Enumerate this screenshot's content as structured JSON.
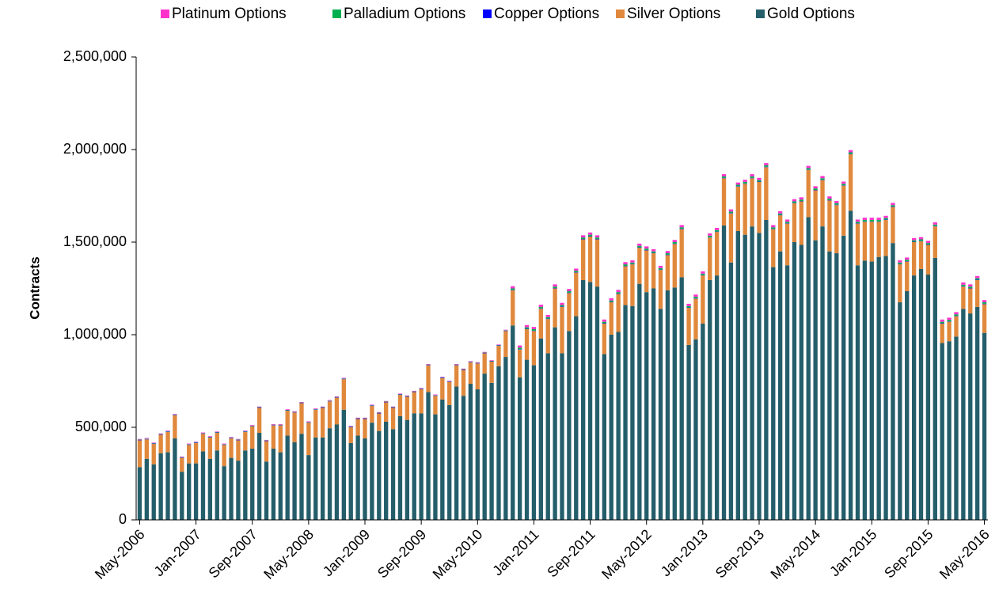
{
  "chart_data": {
    "type": "stacked-bar",
    "y_label": "Contracts",
    "categories": [
      "May-2006",
      null,
      null,
      null,
      null,
      null,
      null,
      null,
      "Jan-2007",
      null,
      null,
      null,
      null,
      null,
      null,
      null,
      "Sep-2007",
      null,
      null,
      null,
      null,
      null,
      null,
      null,
      "May-2008",
      null,
      null,
      null,
      null,
      null,
      null,
      null,
      "Jan-2009",
      null,
      null,
      null,
      null,
      null,
      null,
      null,
      "Sep-2009",
      null,
      null,
      null,
      null,
      null,
      null,
      null,
      "May-2010",
      null,
      null,
      null,
      null,
      null,
      null,
      null,
      "Jan-2011",
      null,
      null,
      null,
      null,
      null,
      null,
      null,
      "Sep-2011",
      null,
      null,
      null,
      null,
      null,
      null,
      null,
      "May-2012",
      null,
      null,
      null,
      null,
      null,
      null,
      null,
      "Jan-2013",
      null,
      null,
      null,
      null,
      null,
      null,
      null,
      "Sep-2013",
      null,
      null,
      null,
      null,
      null,
      null,
      null,
      "May-2014",
      null,
      null,
      null,
      null,
      null,
      null,
      null,
      "Jan-2015",
      null,
      null,
      null,
      null,
      null,
      null,
      null,
      "Sep-2015",
      null,
      null,
      null,
      null,
      null,
      null,
      null,
      "May-2016"
    ],
    "series": [
      {
        "name": "Platinum Options",
        "color": "#ff33cc",
        "values": [
          3000,
          3000,
          3000,
          3000,
          3000,
          3000,
          3000,
          3000,
          3000,
          3000,
          3000,
          3000,
          3000,
          3000,
          3000,
          3000,
          3000,
          3000,
          3000,
          3000,
          3000,
          3000,
          3000,
          3000,
          3000,
          3000,
          3000,
          3000,
          3000,
          3000,
          3000,
          3000,
          3000,
          3000,
          3000,
          3000,
          3000,
          3000,
          3000,
          3000,
          3000,
          3000,
          3000,
          3000,
          3000,
          3000,
          3000,
          3000,
          3000,
          3000,
          3000,
          3000,
          3000,
          12000,
          12000,
          12000,
          12000,
          12000,
          12000,
          12000,
          12000,
          12000,
          12000,
          12000,
          12000,
          12000,
          12000,
          12000,
          12000,
          12000,
          12000,
          12000,
          12000,
          12000,
          12000,
          12000,
          12000,
          12000,
          12000,
          12000,
          12000,
          12000,
          12000,
          12000,
          12000,
          12000,
          12000,
          12000,
          12000,
          12000,
          12000,
          12000,
          12000,
          12000,
          12000,
          12000,
          12000,
          12000,
          12000,
          12000,
          12000,
          12000,
          12000,
          12000,
          12000,
          12000,
          12000,
          12000,
          12000,
          12000,
          12000,
          12000,
          12000,
          12000,
          12000,
          12000,
          12000,
          12000,
          12000,
          12000,
          12000
        ]
      },
      {
        "name": "Palladium Options",
        "color": "#00b050",
        "values": [
          2000,
          2000,
          2000,
          2000,
          2000,
          2000,
          2000,
          2000,
          2000,
          2000,
          2000,
          2000,
          2000,
          2000,
          2000,
          2000,
          2000,
          2000,
          2000,
          2000,
          2000,
          2000,
          2000,
          2000,
          2000,
          2000,
          2000,
          2000,
          2000,
          2000,
          2000,
          2000,
          2000,
          2000,
          2000,
          2000,
          2000,
          2000,
          2000,
          2000,
          2000,
          2000,
          2000,
          2000,
          2000,
          2000,
          2000,
          2000,
          2000,
          2000,
          2000,
          2000,
          2000,
          8000,
          8000,
          8000,
          8000,
          8000,
          8000,
          8000,
          8000,
          8000,
          8000,
          8000,
          8000,
          8000,
          8000,
          8000,
          8000,
          8000,
          8000,
          8000,
          8000,
          8000,
          8000,
          8000,
          8000,
          8000,
          8000,
          8000,
          8000,
          8000,
          8000,
          8000,
          8000,
          8000,
          8000,
          8000,
          8000,
          8000,
          8000,
          8000,
          8000,
          8000,
          8000,
          8000,
          8000,
          8000,
          8000,
          8000,
          8000,
          8000,
          8000,
          8000,
          8000,
          8000,
          8000,
          8000,
          8000,
          8000,
          8000,
          8000,
          8000,
          8000,
          8000,
          8000,
          8000,
          8000,
          8000,
          8000,
          8000
        ]
      },
      {
        "name": "Copper Options",
        "color": "#0000ff",
        "values": [
          2000,
          2000,
          2000,
          2000,
          2000,
          2000,
          2000,
          2000,
          2000,
          2000,
          2000,
          2000,
          2000,
          2000,
          2000,
          2000,
          2000,
          2000,
          2000,
          2000,
          2000,
          2000,
          2000,
          2000,
          2000,
          2000,
          2000,
          2000,
          2000,
          2000,
          2000,
          2000,
          2000,
          2000,
          2000,
          2000,
          2000,
          2000,
          2000,
          2000,
          2000,
          2000,
          2000,
          2000,
          2000,
          2000,
          2000,
          2000,
          2000,
          2000,
          2000,
          2000,
          2000,
          2000,
          2000,
          2000,
          2000,
          2000,
          2000,
          2000,
          2000,
          2000,
          2000,
          2000,
          2000,
          2000,
          2000,
          2000,
          2000,
          2000,
          2000,
          2000,
          2000,
          2000,
          2000,
          2000,
          2000,
          2000,
          2000,
          2000,
          2000,
          2000,
          2000,
          2000,
          2000,
          2000,
          2000,
          2000,
          2000,
          2000,
          2000,
          2000,
          2000,
          2000,
          2000,
          2000,
          2000,
          2000,
          2000,
          2000,
          2000,
          2000,
          2000,
          2000,
          2000,
          2000,
          2000,
          2000,
          2000,
          2000,
          2000,
          2000,
          2000,
          2000,
          2000,
          2000,
          2000,
          2000,
          2000,
          2000,
          2000
        ]
      },
      {
        "name": "Silver Options",
        "color": "#e0893d",
        "values": [
          145000,
          105000,
          110000,
          100000,
          110000,
          125000,
          75000,
          100000,
          110000,
          95000,
          115000,
          95000,
          115000,
          105000,
          110000,
          100000,
          120000,
          135000,
          110000,
          125000,
          145000,
          135000,
          160000,
          165000,
          175000,
          150000,
          160000,
          145000,
          145000,
          165000,
          85000,
          90000,
          105000,
          90000,
          95000,
          105000,
          115000,
          115000,
          125000,
          115000,
          130000,
          145000,
          100000,
          115000,
          125000,
          115000,
          140000,
          115000,
          140000,
          110000,
          115000,
          110000,
          140000,
          190000,
          150000,
          165000,
          185000,
          160000,
          185000,
          210000,
          250000,
          205000,
          235000,
          220000,
          245000,
          255000,
          165000,
          175000,
          205000,
          210000,
          225000,
          195000,
          225000,
          190000,
          210000,
          190000,
          235000,
          260000,
          200000,
          220000,
          260000,
          230000,
          235000,
          255000,
          265000,
          240000,
          275000,
          260000,
          275000,
          285000,
          205000,
          195000,
          225000,
          210000,
          235000,
          255000,
          270000,
          250000,
          275000,
          260000,
          270000,
          305000,
          225000,
          210000,
          215000,
          190000,
          195000,
          195000,
          205000,
          160000,
          180000,
          150000,
          160000,
          170000,
          105000,
          105000,
          110000,
          120000,
          135000,
          145000,
          155000
        ]
      },
      {
        "name": "Gold Options",
        "color": "#255e6b",
        "values": [
          285000,
          330000,
          300000,
          360000,
          365000,
          440000,
          260000,
          305000,
          305000,
          370000,
          330000,
          375000,
          290000,
          335000,
          320000,
          375000,
          385000,
          470000,
          315000,
          385000,
          365000,
          455000,
          420000,
          465000,
          350000,
          445000,
          445000,
          495000,
          515000,
          595000,
          415000,
          455000,
          440000,
          525000,
          480000,
          530000,
          490000,
          560000,
          540000,
          575000,
          575000,
          690000,
          570000,
          650000,
          620000,
          720000,
          670000,
          735000,
          705000,
          790000,
          740000,
          830000,
          880000,
          1050000,
          770000,
          865000,
          835000,
          980000,
          900000,
          1040000,
          900000,
          1020000,
          1100000,
          1295000,
          1285000,
          1260000,
          895000,
          1000000,
          1015000,
          1160000,
          1155000,
          1275000,
          1230000,
          1250000,
          1140000,
          1240000,
          1255000,
          1310000,
          945000,
          975000,
          1060000,
          1295000,
          1320000,
          1590000,
          1390000,
          1560000,
          1540000,
          1585000,
          1550000,
          1620000,
          1365000,
          1450000,
          1375000,
          1500000,
          1485000,
          1635000,
          1510000,
          1585000,
          1450000,
          1440000,
          1535000,
          1670000,
          1375000,
          1400000,
          1395000,
          1420000,
          1425000,
          1495000,
          1175000,
          1235000,
          1320000,
          1355000,
          1325000,
          1415000,
          955000,
          965000,
          990000,
          1140000,
          1115000,
          1150000,
          1010000
        ]
      }
    ],
    "ylim": [
      0,
      2500000
    ],
    "yticks": [
      0,
      {
        "value": 500000,
        "label": "500,000"
      },
      {
        "value": 1000000,
        "label": "1,000,000"
      },
      {
        "value": 1500000,
        "label": "1,500,000"
      },
      {
        "value": 2000000,
        "label": "2,000,000"
      },
      {
        "value": 2500000,
        "label": "2,500,000"
      }
    ],
    "grid": false,
    "legend": "top"
  }
}
